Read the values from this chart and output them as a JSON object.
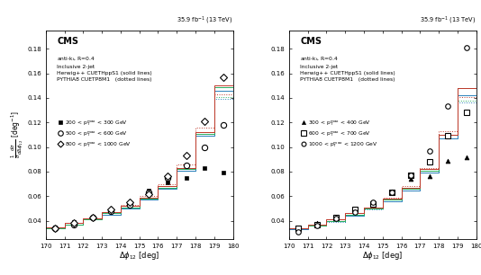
{
  "xlabel": "$\\Delta\\phi_{12}$ [deg]",
  "ylabel": "$\\frac{1}{\\sigma}\\frac{d\\sigma}{d\\Delta\\phi_{12}}$ [deg$^{-1}$]",
  "lumi_label": "35.9 fb$^{-1}$ (13 TeV)",
  "cms_label": "CMS",
  "info_lines": [
    "anti-k$_{\\rm t}$, R=0.4",
    "Inclusive 2-jet",
    "Herwig++ CUETHppS1 (solid lines)",
    "PYTHIA8 CUETP8M1   (dotted lines)"
  ],
  "xlim": [
    170,
    180
  ],
  "ylim": [
    0.025,
    0.195
  ],
  "xticks": [
    170,
    171,
    172,
    173,
    174,
    175,
    176,
    177,
    178,
    179,
    180
  ],
  "yticks": [
    0.04,
    0.06,
    0.08,
    0.1,
    0.12,
    0.14,
    0.16,
    0.18
  ],
  "bin_edges": [
    170,
    171,
    172,
    173,
    174,
    175,
    176,
    177,
    178,
    179,
    180
  ],
  "panel1": {
    "legend_entries": [
      "200 < p$_{\\rm T}^{\\rm max}$ < 300 GeV",
      "500 < p$_{\\rm T}^{\\rm max}$ < 600 GeV",
      "800 < p$_{\\rm T}^{\\rm max}$ < 1000 GeV"
    ],
    "markers": [
      "s",
      "o",
      "D"
    ],
    "marker_filled": [
      true,
      false,
      false
    ],
    "marker_sizes": [
      3.5,
      4.5,
      4.0
    ],
    "data1": [
      0.035,
      0.039,
      0.043,
      0.048,
      0.053,
      0.065,
      0.071,
      0.075,
      0.083,
      0.079
    ],
    "data2": [
      0.034,
      0.037,
      0.043,
      0.048,
      0.053,
      0.063,
      0.075,
      0.085,
      0.1,
      0.118
    ],
    "data3": [
      0.034,
      0.038,
      0.043,
      0.049,
      0.055,
      0.062,
      0.076,
      0.093,
      0.121,
      0.157
    ],
    "herwig_1": [
      0.035,
      0.038,
      0.042,
      0.047,
      0.052,
      0.059,
      0.068,
      0.083,
      0.112,
      0.15
    ],
    "herwig_2": [
      0.034,
      0.037,
      0.041,
      0.046,
      0.051,
      0.058,
      0.067,
      0.082,
      0.111,
      0.149
    ],
    "herwig_3": [
      0.034,
      0.037,
      0.041,
      0.045,
      0.05,
      0.057,
      0.066,
      0.081,
      0.109,
      0.146
    ],
    "pythia_1": [
      0.035,
      0.038,
      0.042,
      0.047,
      0.053,
      0.06,
      0.07,
      0.086,
      0.116,
      0.143
    ],
    "pythia_2": [
      0.034,
      0.037,
      0.041,
      0.046,
      0.051,
      0.058,
      0.068,
      0.083,
      0.112,
      0.141
    ],
    "pythia_3": [
      0.034,
      0.037,
      0.041,
      0.045,
      0.051,
      0.057,
      0.067,
      0.081,
      0.109,
      0.139
    ],
    "herwig_colors": [
      "#c0392b",
      "#27ae60",
      "#2980b9"
    ],
    "pythia_colors": [
      "#c0392b",
      "#27ae60",
      "#2980b9"
    ]
  },
  "panel2": {
    "legend_entries": [
      "300 < p$_{\\rm T}^{\\rm max}$ < 400 GeV",
      "600 < p$_{\\rm T}^{\\rm max}$ < 700 GeV",
      "1000 < p$_{\\rm T}^{\\rm max}$ < 1200 GeV"
    ],
    "markers": [
      "^",
      "s",
      "o"
    ],
    "marker_filled": [
      true,
      false,
      false
    ],
    "marker_sizes": [
      3.5,
      4.5,
      4.0
    ],
    "data1": [
      0.034,
      0.038,
      0.043,
      0.048,
      0.054,
      0.064,
      0.074,
      0.076,
      0.089,
      0.092
    ],
    "data2": [
      0.034,
      0.037,
      0.043,
      0.049,
      0.054,
      0.063,
      0.077,
      0.088,
      0.109,
      0.128
    ],
    "data3": [
      0.031,
      0.036,
      0.042,
      0.047,
      0.055,
      0.063,
      0.077,
      0.097,
      0.133,
      0.181
    ],
    "herwig_1": [
      0.034,
      0.037,
      0.041,
      0.046,
      0.051,
      0.058,
      0.067,
      0.082,
      0.11,
      0.148
    ],
    "herwig_2": [
      0.034,
      0.036,
      0.04,
      0.045,
      0.05,
      0.057,
      0.066,
      0.081,
      0.11,
      0.148
    ],
    "herwig_3": [
      0.033,
      0.036,
      0.04,
      0.044,
      0.05,
      0.056,
      0.065,
      0.079,
      0.107,
      0.142
    ],
    "pythia_1": [
      0.034,
      0.037,
      0.041,
      0.046,
      0.051,
      0.059,
      0.068,
      0.083,
      0.113,
      0.141
    ],
    "pythia_2": [
      0.034,
      0.036,
      0.04,
      0.045,
      0.05,
      0.058,
      0.067,
      0.081,
      0.11,
      0.138
    ],
    "pythia_3": [
      0.033,
      0.036,
      0.039,
      0.044,
      0.049,
      0.056,
      0.065,
      0.079,
      0.107,
      0.136
    ],
    "herwig_colors": [
      "#c0392b",
      "#27ae60",
      "#2980b9"
    ],
    "pythia_colors": [
      "#c0392b",
      "#27ae60",
      "#2980b9"
    ]
  }
}
